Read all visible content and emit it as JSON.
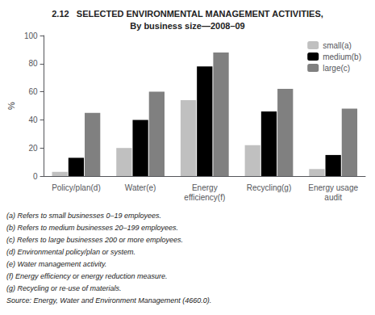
{
  "chart_data": {
    "type": "bar",
    "title": "2.12   SELECTED ENVIRONMENTAL MANAGEMENT ACTIVITIES,\nBy business size—2008–09",
    "categories": [
      "Policy/plan(d)",
      "Water(e)",
      "Energy\nefficiency(f)",
      "Recycling(g)",
      "Energy usage\naudit"
    ],
    "series": [
      {
        "name": "small(a)",
        "color": "#c0c0c0",
        "values": [
          3,
          20,
          54,
          22,
          5
        ]
      },
      {
        "name": "medium(b)",
        "color": "#000000",
        "values": [
          13,
          40,
          78,
          46,
          15
        ]
      },
      {
        "name": "large(c)",
        "color": "#808080",
        "values": [
          45,
          60,
          88,
          62,
          48
        ]
      }
    ],
    "ylabel": "%",
    "ylim": [
      0,
      100
    ],
    "yticks": [
      0,
      20,
      40,
      60,
      80,
      100
    ],
    "grid": false,
    "legend": "upper right",
    "annotations": [
      "(a) Refers to small businesses 0–19 employees.",
      "(b) Refers to medium businesses 20–199 employees.",
      "(c) Refers to large businesses 200 or more employees.",
      "(d) Environmental policy/plan or system.",
      "(e) Water management activity.",
      "(f) Energy efficiency or energy reduction measure.",
      "(g) Recycling or re-use of materials.",
      "Source: Energy, Water and Environment Management (4660.0)."
    ]
  }
}
